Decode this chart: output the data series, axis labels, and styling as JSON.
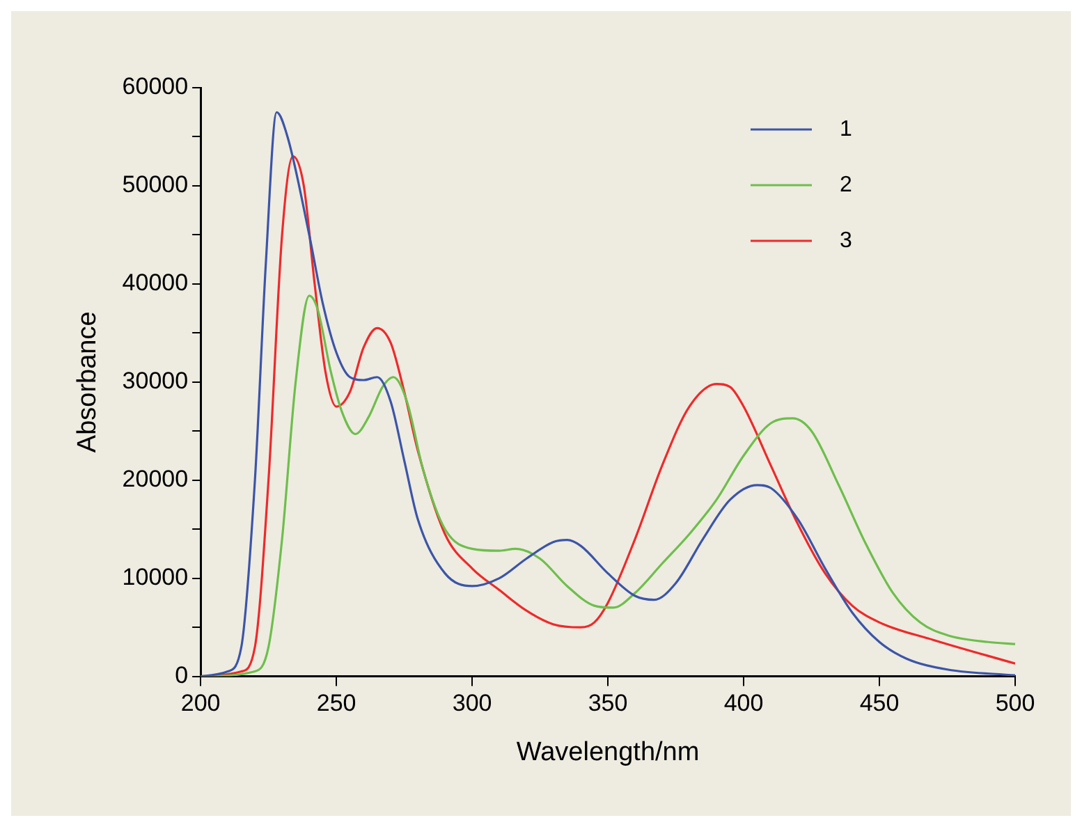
{
  "chart_data": {
    "type": "line",
    "xlabel": "Wavelength/nm",
    "ylabel": "Absorbance",
    "xlim": [
      200,
      500
    ],
    "xticks": [
      200,
      250,
      300,
      350,
      400,
      450,
      500
    ],
    "ylim": [
      0,
      60000
    ],
    "yticks": [
      0,
      {
        "value": 5000,
        "label": null
      },
      10000,
      {
        "value": 15000,
        "label": null
      },
      20000,
      {
        "value": 25000,
        "label": null
      },
      30000,
      {
        "value": 35000,
        "label": null
      },
      40000,
      {
        "value": 45000,
        "label": null
      },
      50000,
      {
        "value": 55000,
        "label": null
      },
      60000
    ],
    "grid": false,
    "legend": "top right",
    "marker": "none",
    "line_style": "solid",
    "series": [
      {
        "name": "1",
        "color": "#3b55a8",
        "x": [
          200,
          210,
          215,
          220,
          224,
          228,
          232,
          240,
          245,
          250,
          255,
          260,
          265,
          270,
          275,
          280,
          290,
          300,
          310,
          320,
          330,
          335,
          340,
          350,
          360,
          367,
          375,
          385,
          395,
          405,
          410,
          420,
          430,
          440,
          450,
          460,
          475,
          500
        ],
        "values": [
          0,
          500,
          3000,
          20000,
          42000,
          57500,
          55000,
          45000,
          38000,
          33000,
          30500,
          30200,
          30500,
          28000,
          22000,
          16000,
          10500,
          9200,
          10000,
          12000,
          13700,
          13900,
          13300,
          10500,
          8200,
          7800,
          9500,
          14000,
          18000,
          19500,
          19200,
          16000,
          11000,
          6500,
          3500,
          1800,
          700,
          100
        ]
      },
      {
        "name": "2",
        "color": "#6dbf4b",
        "x": [
          200,
          220,
          225,
          230,
          235,
          240,
          243,
          248,
          252,
          257,
          262,
          267,
          271,
          276,
          282,
          290,
          300,
          310,
          316,
          325,
          335,
          345,
          352,
          360,
          370,
          380,
          390,
          400,
          410,
          418,
          425,
          435,
          445,
          455,
          465,
          475,
          490,
          500
        ],
        "values": [
          0,
          500,
          3000,
          14000,
          30000,
          38800,
          37500,
          31000,
          27000,
          24700,
          26500,
          29500,
          30500,
          28000,
          21000,
          15000,
          13000,
          12800,
          13000,
          12000,
          9200,
          7200,
          7000,
          8500,
          11500,
          14500,
          18000,
          22500,
          25800,
          26300,
          25000,
          19500,
          13500,
          8500,
          5500,
          4200,
          3500,
          3300
        ]
      },
      {
        "name": "3",
        "color": "#ee2a2a",
        "x": [
          200,
          215,
          220,
          225,
          230,
          234,
          238,
          242,
          246,
          250,
          255,
          260,
          265,
          270,
          275,
          280,
          290,
          300,
          310,
          320,
          330,
          340,
          345,
          350,
          360,
          370,
          380,
          390,
          395,
          400,
          410,
          420,
          430,
          440,
          450,
          470,
          500
        ],
        "values": [
          0,
          500,
          3000,
          20000,
          45000,
          53000,
          50000,
          40000,
          31000,
          27500,
          29000,
          33500,
          35500,
          34000,
          29000,
          23000,
          14500,
          11000,
          8800,
          6700,
          5300,
          5000,
          5500,
          7500,
          14000,
          21500,
          27500,
          29800,
          29500,
          27500,
          21500,
          15500,
          10500,
          7200,
          5500,
          3700,
          1300
        ]
      }
    ]
  }
}
